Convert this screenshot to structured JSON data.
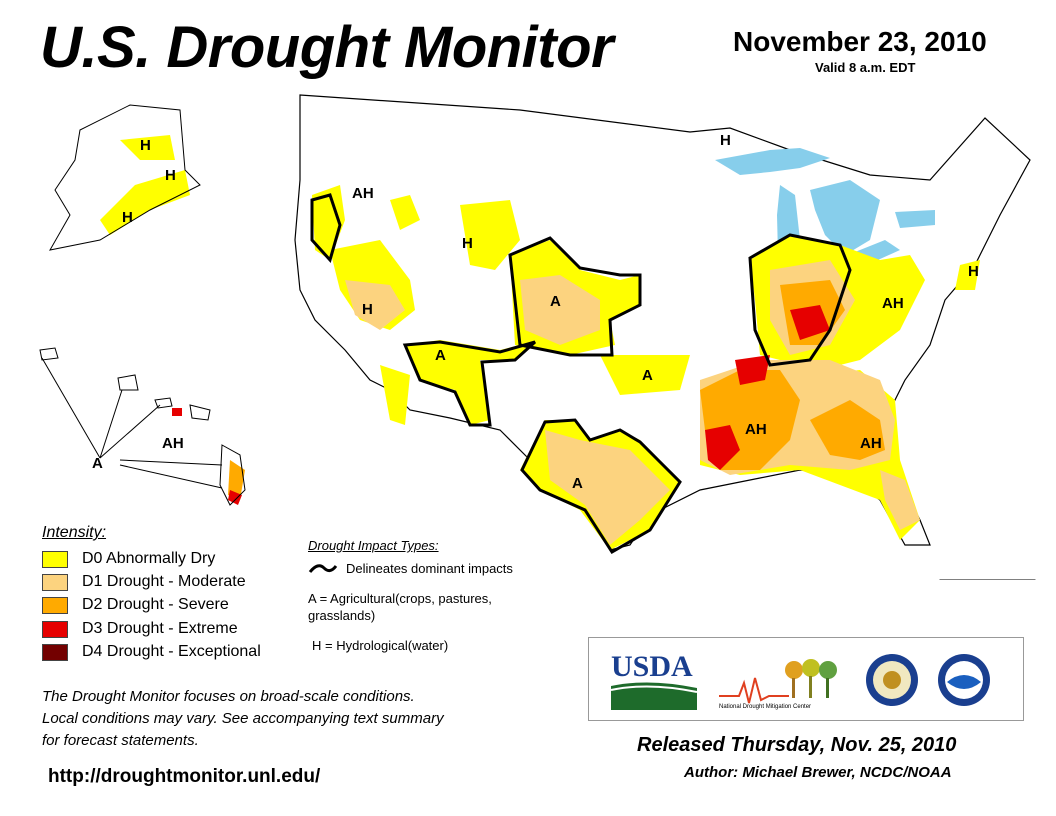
{
  "header": {
    "title": "U.S. Drought Monitor",
    "date": "November 23, 2010",
    "valid": "Valid 8 a.m. EDT"
  },
  "legend": {
    "heading": "Intensity:",
    "items": [
      {
        "label": "D0 Abnormally Dry",
        "color": "#ffff00"
      },
      {
        "label": "D1 Drought - Moderate",
        "color": "#fcd37f"
      },
      {
        "label": "D2 Drought - Severe",
        "color": "#ffaa00"
      },
      {
        "label": "D3 Drought - Extreme",
        "color": "#e60000"
      },
      {
        "label": "D4 Drought - Exceptional",
        "color": "#730000"
      }
    ]
  },
  "impacts": {
    "heading": "Drought Impact Types:",
    "line_label": "Delineates dominant impacts",
    "a_label": "A = Agricultural(crops, pastures, grasslands)",
    "h_label": "H = Hydrological(water)"
  },
  "map_labels": {
    "alaska_h1": "H",
    "alaska_h2": "H",
    "alaska_h3": "H",
    "hawaii_ah": "AH",
    "hawaii_a": "A",
    "oregon_ah": "AH",
    "nevada_h": "H",
    "wyoming_h": "H",
    "colorado_a": "A",
    "utah_a": "A",
    "kansas_a": "A",
    "texas_a": "A",
    "michigan_h": "H",
    "newengland_h": "H",
    "ohio_ah": "AH",
    "south_ah": "AH",
    "southeast_ah": "AH"
  },
  "disclaimer": [
    "The Drought Monitor focuses on broad-scale conditions.",
    "Local conditions may vary. See accompanying text summary",
    "for forecast statements."
  ],
  "url": "http://droughtmonitor.unl.edu/",
  "logos": {
    "usda": "USDA",
    "ndmc": "National Drought Mitigation Center"
  },
  "footer": {
    "released": "Released Thursday, Nov. 25, 2010",
    "author": "Author: Michael Brewer, NCDC/NOAA"
  },
  "colors": {
    "water": "#87ceeb",
    "state_line": "#000000",
    "river": "#4aa3df",
    "impact_line": "#000000"
  }
}
